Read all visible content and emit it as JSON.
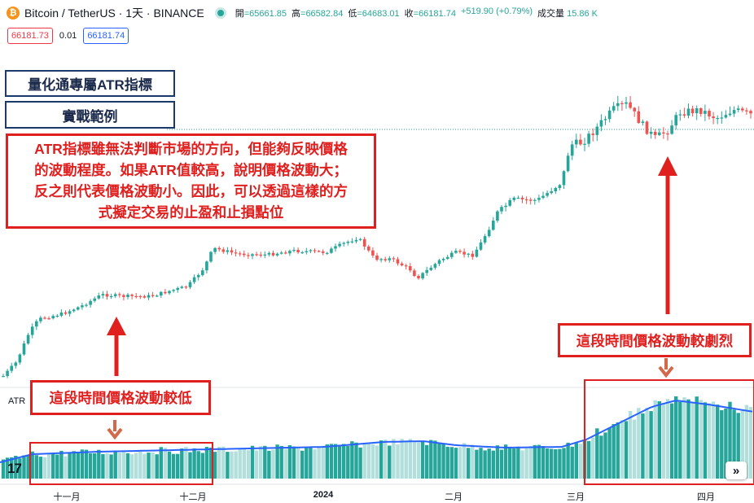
{
  "header": {
    "logo_letter": "₿",
    "symbol": "Bitcoin / TetherUS · 1天 · BINANCE",
    "ohlc": [
      {
        "label": "開",
        "value": "=65661.85"
      },
      {
        "label": "高",
        "value": "=66582.84"
      },
      {
        "label": "低",
        "value": "=64683.01"
      },
      {
        "label": "收",
        "value": "=66181.74"
      },
      {
        "label": "",
        "value": "+519.90 (+0.79%)"
      },
      {
        "label": "成交量",
        "value": "15.86 K"
      }
    ]
  },
  "quote": {
    "sell": "66181.73",
    "spread": "0.01",
    "buy": "66181.74"
  },
  "annotations": {
    "title": "量化通專屬ATR指標",
    "subtitle": "實戰範例",
    "description_lines": [
      "ATR指標雖無法判斷市場的方向，但能夠反映價格",
      "的波動程度。如果ATR值較高，說明價格波動大；",
      "反之則代表價格波動小。因此，可以透過這樣的方",
      "式擬定交易的止盈和止損點位"
    ],
    "low_vol_callout": "這段時間價格波動較低",
    "high_vol_callout": "這段時間價格波動較劇烈"
  },
  "atr_label": "ATR",
  "tv_logo": "17",
  "scroll_icon": "»",
  "x_axis": [
    {
      "label": "十一月",
      "bold": false
    },
    {
      "label": "十二月",
      "bold": false
    },
    {
      "label": "2024",
      "bold": true
    },
    {
      "label": "二月",
      "bold": false
    },
    {
      "label": "三月",
      "bold": false
    },
    {
      "label": "四月",
      "bold": false
    }
  ],
  "colors": {
    "up": "#26a69a",
    "down": "#ef5350",
    "atr_line": "#2962ff",
    "atr_bar_up": "#26a69a",
    "atr_bar_down": "#b2dfdb",
    "annotation_red": "#e0201f",
    "title_navy": "#1b3a6b",
    "arrow_brown": "#d2694b"
  },
  "chart_data": {
    "type": "candlestick",
    "symbol": "BTCUSDT",
    "interval": "1D",
    "x_ticks": [
      "十一月",
      "十二月",
      "2024",
      "二月",
      "三月",
      "四月"
    ],
    "last_close": 66181.74,
    "price_anchors": [
      {
        "period": "start",
        "approx_close": 34000
      },
      {
        "period": "十一月",
        "approx_close": 36000
      },
      {
        "period": "十二月",
        "approx_close": 42000
      },
      {
        "period": "2024",
        "approx_close": 44000
      },
      {
        "period": "二月",
        "approx_close": 43000
      },
      {
        "period": "三月",
        "approx_close": 62000
      },
      {
        "period": "四月",
        "approx_close": 69000
      },
      {
        "period": "end",
        "approx_close": 66181.74
      }
    ],
    "atr_indicator": {
      "name": "ATR",
      "trend": "low from 十一月 to 十二月, rising sharply into 三月, peaking late 三月 / early 四月"
    }
  }
}
